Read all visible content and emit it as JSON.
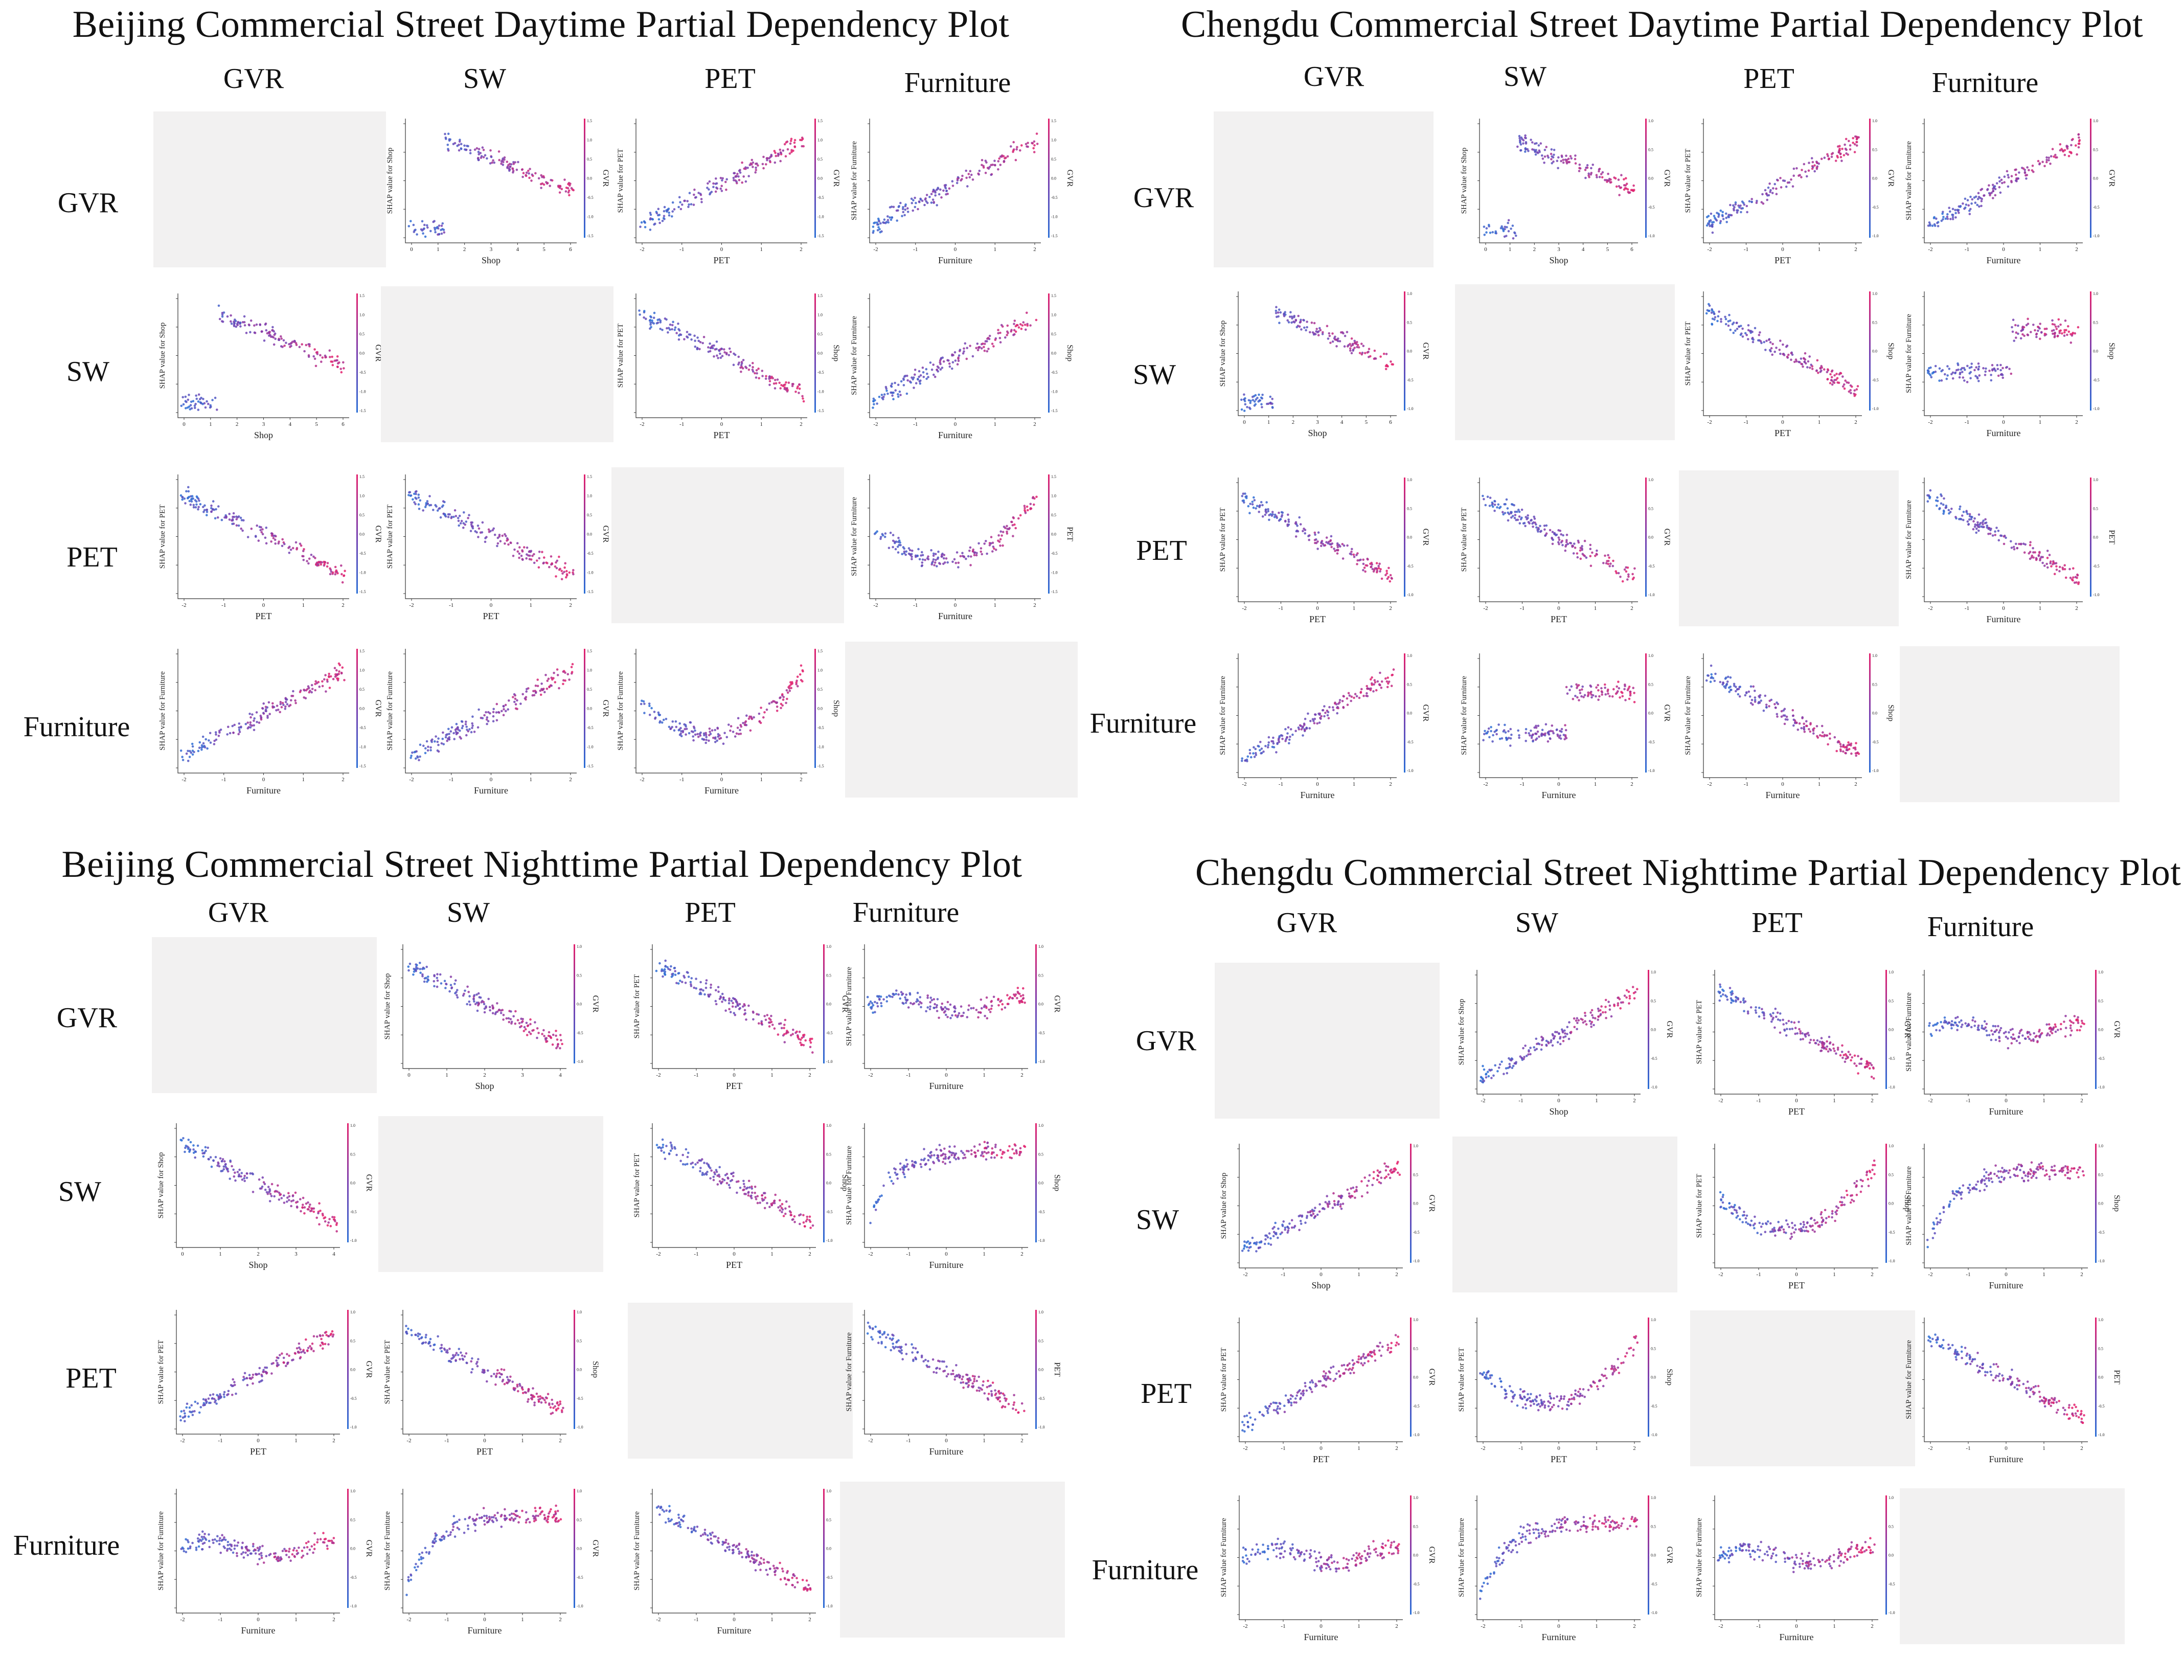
{
  "colors": {
    "low": "#2b6fd6",
    "mid": "#7a3fb0",
    "high": "#e3216d",
    "blank_panel": "#f2f1f1",
    "axis": "#333333"
  },
  "dimension_labels": [
    "GVR",
    "SW",
    "PET",
    "Furniture"
  ],
  "shared_text": {
    "shap_prefix": "SHAP value for ",
    "colorbar_ticks": [
      "1.0",
      "0.5",
      "0.0",
      "-0.5",
      "-1.0"
    ],
    "colorbar_ticks_bj_day": [
      "1.5",
      "1.0",
      "0.5",
      "0.0",
      "-0.5",
      "-1.0",
      "-1.5"
    ]
  },
  "quadrants": [
    {
      "id": "bj-day",
      "title": "Beijing Commercial Street Daytime Partial Dependency Plot",
      "cols": [
        "GVR",
        "SW",
        "PET",
        "Furniture"
      ],
      "rows": [
        "GVR",
        "SW",
        "PET",
        "Furniture"
      ]
    },
    {
      "id": "cd-day",
      "title": "Chengdu Commercial Street Daytime Partial Dependency Plot",
      "cols": [
        "GVR",
        "SW",
        "PET",
        "Furniture"
      ],
      "rows": [
        "GVR",
        "SW",
        "PET",
        "Furniture"
      ]
    },
    {
      "id": "bj-night",
      "title": "Beijing Commercial Street Nighttime Partial Dependency Plot",
      "cols": [
        "GVR",
        "SW",
        "PET",
        "Furniture"
      ],
      "rows": [
        "GVR",
        "SW",
        "PET",
        "Furniture"
      ]
    },
    {
      "id": "cd-night",
      "title": "Chengdu Commercial Street Nighttime Partial Dependency Plot",
      "cols": [
        "GVR",
        "SW",
        "PET",
        "Furniture"
      ],
      "rows": [
        "GVR",
        "SW",
        "PET",
        "Furniture"
      ]
    }
  ],
  "chart_data": [
    {
      "id": "bj-day",
      "type": "scatter",
      "title": "Beijing Commercial Street Daytime Partial Dependency Plot",
      "panels": [
        {
          "row": 0,
          "col": 1,
          "x": "Shop",
          "y": "SHAP value for Shop",
          "color": "GVR",
          "shape": "sw",
          "xticks": [
            "0",
            "1",
            "2",
            "3",
            "4",
            "5",
            "6"
          ]
        },
        {
          "row": 0,
          "col": 2,
          "x": "PET",
          "y": "SHAP value for PET",
          "color": "GVR",
          "shape": "rise"
        },
        {
          "row": 0,
          "col": 3,
          "x": "Furniture",
          "y": "SHAP value for Furniture",
          "color": "GVR",
          "shape": "rise"
        },
        {
          "row": 1,
          "col": 0,
          "x": "Shop",
          "y": "SHAP value for Shop",
          "color": "GVR",
          "shape": "sw",
          "xticks": [
            "0",
            "1",
            "2",
            "3",
            "4",
            "5",
            "6"
          ]
        },
        {
          "row": 1,
          "col": 2,
          "x": "PET",
          "y": "SHAP value for PET",
          "color": "Shop",
          "shape": "fall"
        },
        {
          "row": 1,
          "col": 3,
          "x": "Furniture",
          "y": "SHAP value for Furniture",
          "color": "Shop",
          "shape": "rise"
        },
        {
          "row": 2,
          "col": 0,
          "x": "PET",
          "y": "SHAP value for PET",
          "color": "GVR",
          "shape": "fall"
        },
        {
          "row": 2,
          "col": 1,
          "x": "PET",
          "y": "SHAP value for PET",
          "color": "GVR",
          "shape": "fall"
        },
        {
          "row": 2,
          "col": 3,
          "x": "Furniture",
          "y": "SHAP value for Furniture",
          "color": "PET",
          "shape": "ushape"
        },
        {
          "row": 3,
          "col": 0,
          "x": "Furniture",
          "y": "SHAP value for Furniture",
          "color": "GVR",
          "shape": "rise"
        },
        {
          "row": 3,
          "col": 1,
          "x": "Furniture",
          "y": "SHAP value for Furniture",
          "color": "GVR",
          "shape": "rise"
        },
        {
          "row": 3,
          "col": 2,
          "x": "Furniture",
          "y": "SHAP value for Furniture",
          "color": "Shop",
          "shape": "ushape"
        }
      ]
    },
    {
      "id": "cd-day",
      "type": "scatter",
      "title": "Chengdu Commercial Street Daytime Partial Dependency Plot",
      "panels": [
        {
          "row": 0,
          "col": 1,
          "x": "Shop",
          "y": "SHAP value for Shop",
          "color": "GVR",
          "shape": "sw",
          "xticks": [
            "0",
            "1",
            "2",
            "3",
            "4",
            "5",
            "6"
          ]
        },
        {
          "row": 0,
          "col": 2,
          "x": "PET",
          "y": "SHAP value for PET",
          "color": "GVR",
          "shape": "rise"
        },
        {
          "row": 0,
          "col": 3,
          "x": "Furniture",
          "y": "SHAP value for Furniture",
          "color": "GVR",
          "shape": "rise"
        },
        {
          "row": 1,
          "col": 0,
          "x": "Shop",
          "y": "SHAP value for Shop",
          "color": "GVR",
          "shape": "sw",
          "xticks": [
            "0",
            "1",
            "2",
            "3",
            "4",
            "5",
            "6"
          ]
        },
        {
          "row": 1,
          "col": 2,
          "x": "PET",
          "y": "SHAP value for PET",
          "color": "Shop",
          "shape": "fall"
        },
        {
          "row": 1,
          "col": 3,
          "x": "Furniture",
          "y": "SHAP value for Furniture",
          "color": "Shop",
          "shape": "step"
        },
        {
          "row": 2,
          "col": 0,
          "x": "PET",
          "y": "SHAP value for PET",
          "color": "GVR",
          "shape": "fall"
        },
        {
          "row": 2,
          "col": 1,
          "x": "PET",
          "y": "SHAP value for PET",
          "color": "GVR",
          "shape": "fall"
        },
        {
          "row": 2,
          "col": 3,
          "x": "Furniture",
          "y": "SHAP value for Furniture",
          "color": "PET",
          "shape": "fall"
        },
        {
          "row": 3,
          "col": 0,
          "x": "Furniture",
          "y": "SHAP value for Furniture",
          "color": "GVR",
          "shape": "rise"
        },
        {
          "row": 3,
          "col": 1,
          "x": "Furniture",
          "y": "SHAP value for Furniture",
          "color": "GVR",
          "shape": "step"
        },
        {
          "row": 3,
          "col": 2,
          "x": "Furniture",
          "y": "SHAP value for Furniture",
          "color": "Shop",
          "shape": "fall"
        }
      ]
    },
    {
      "id": "bj-night",
      "type": "scatter",
      "title": "Beijing Commercial Street Nighttime Partial Dependency Plot",
      "panels": [
        {
          "row": 0,
          "col": 1,
          "x": "Shop",
          "y": "SHAP value for Shop",
          "color": "GVR",
          "shape": "fall",
          "xticks": [
            "0",
            "1",
            "2",
            "3",
            "4"
          ]
        },
        {
          "row": 0,
          "col": 2,
          "x": "PET",
          "y": "SHAP value for PET",
          "color": "GVR",
          "shape": "fall"
        },
        {
          "row": 0,
          "col": 3,
          "x": "Furniture",
          "y": "SHAP value for Furniture",
          "color": "GVR",
          "shape": "flat"
        },
        {
          "row": 1,
          "col": 0,
          "x": "Shop",
          "y": "SHAP value for Shop",
          "color": "GVR",
          "shape": "fall",
          "xticks": [
            "0",
            "1",
            "2",
            "3",
            "4"
          ]
        },
        {
          "row": 1,
          "col": 2,
          "x": "PET",
          "y": "SHAP value for PET",
          "color": "Shop",
          "shape": "fall"
        },
        {
          "row": 1,
          "col": 3,
          "x": "Furniture",
          "y": "SHAP value for Furniture",
          "color": "Shop",
          "shape": "sat"
        },
        {
          "row": 2,
          "col": 0,
          "x": "PET",
          "y": "SHAP value for PET",
          "color": "GVR",
          "shape": "rise"
        },
        {
          "row": 2,
          "col": 1,
          "x": "PET",
          "y": "SHAP value for PET",
          "color": "Shop",
          "shape": "fall"
        },
        {
          "row": 2,
          "col": 3,
          "x": "Furniture",
          "y": "SHAP value for Furniture",
          "color": "PET",
          "shape": "fall"
        },
        {
          "row": 3,
          "col": 0,
          "x": "Furniture",
          "y": "SHAP value for Furniture",
          "color": "GVR",
          "shape": "flat"
        },
        {
          "row": 3,
          "col": 1,
          "x": "Furniture",
          "y": "SHAP value for Furniture",
          "color": "GVR",
          "shape": "sat"
        },
        {
          "row": 3,
          "col": 2,
          "x": "Furniture",
          "y": "SHAP value for Furniture",
          "color": "Shop",
          "shape": "fall"
        }
      ]
    },
    {
      "id": "cd-night",
      "type": "scatter",
      "title": "Chengdu Commercial Street Nighttime Partial Dependency Plot",
      "panels": [
        {
          "row": 0,
          "col": 1,
          "x": "Shop",
          "y": "SHAP value for Shop",
          "color": "GVR",
          "shape": "rise"
        },
        {
          "row": 0,
          "col": 2,
          "x": "PET",
          "y": "SHAP value for PET",
          "color": "GVR",
          "shape": "fall"
        },
        {
          "row": 0,
          "col": 3,
          "x": "Furniture",
          "y": "SHAP value for Furniture",
          "color": "GVR",
          "shape": "flat"
        },
        {
          "row": 1,
          "col": 0,
          "x": "Shop",
          "y": "SHAP value for Shop",
          "color": "GVR",
          "shape": "rise"
        },
        {
          "row": 1,
          "col": 2,
          "x": "PET",
          "y": "SHAP value for PET",
          "color": "Shop",
          "shape": "ushape"
        },
        {
          "row": 1,
          "col": 3,
          "x": "Furniture",
          "y": "SHAP value for Furniture",
          "color": "Shop",
          "shape": "sat"
        },
        {
          "row": 2,
          "col": 0,
          "x": "PET",
          "y": "SHAP value for PET",
          "color": "GVR",
          "shape": "rise"
        },
        {
          "row": 2,
          "col": 1,
          "x": "PET",
          "y": "SHAP value for PET",
          "color": "Shop",
          "shape": "ushape"
        },
        {
          "row": 2,
          "col": 3,
          "x": "Furniture",
          "y": "SHAP value for Furniture",
          "color": "PET",
          "shape": "fall"
        },
        {
          "row": 3,
          "col": 0,
          "x": "Furniture",
          "y": "SHAP value for Furniture",
          "color": "GVR",
          "shape": "flat"
        },
        {
          "row": 3,
          "col": 1,
          "x": "Furniture",
          "y": "SHAP value for Furniture",
          "color": "GVR",
          "shape": "sat"
        },
        {
          "row": 3,
          "col": 2,
          "x": "Furniture",
          "y": "SHAP value for Furniture",
          "color": "Shop",
          "shape": "flat"
        }
      ]
    }
  ]
}
